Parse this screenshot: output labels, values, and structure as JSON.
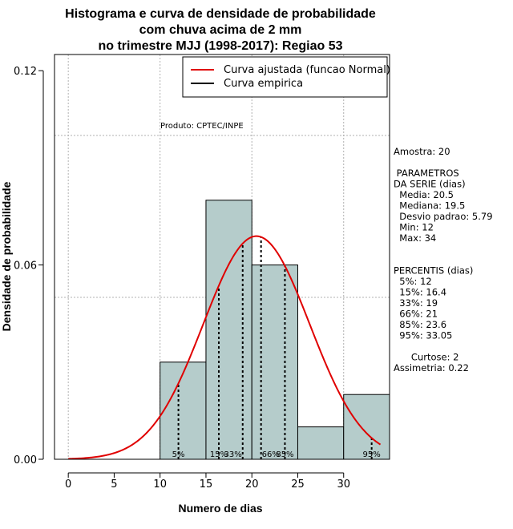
{
  "chart_data": {
    "type": "bar",
    "title_lines": [
      "Histograma e curva de densidade de probabilidade",
      "com chuva acima de 2 mm",
      "no trimestre MJJ (1998-2017): Regiao 53"
    ],
    "xlabel": "Numero de dias",
    "ylabel": "Densidade de probabilidade",
    "xlim": [
      -1.5,
      35
    ],
    "ylim": [
      0,
      0.125
    ],
    "x_ticks": [
      0,
      5,
      10,
      15,
      20,
      25,
      30
    ],
    "x_tick_labels": [
      "0",
      "5",
      "10",
      "15",
      "20",
      "25",
      "30"
    ],
    "y_ticks": [
      0.0,
      0.06,
      0.12
    ],
    "y_tick_labels": [
      "0.00",
      "0.06",
      "0.12"
    ],
    "bins": [
      {
        "start": 10,
        "end": 15,
        "density": 0.03
      },
      {
        "start": 15,
        "end": 20,
        "density": 0.08
      },
      {
        "start": 20,
        "end": 25,
        "density": 0.06
      },
      {
        "start": 25,
        "end": 30,
        "density": 0.01
      },
      {
        "start": 30,
        "end": 35,
        "density": 0.02
      }
    ],
    "bar_color": "#b5cccb",
    "curve_color": "#e00000",
    "normal_fit": {
      "mean": 20.5,
      "sd": 5.79,
      "x_from": 0,
      "x_to": 34
    },
    "grid_x": [
      0,
      10,
      20,
      30
    ],
    "grid_y": [
      0.05,
      0.1
    ],
    "percentiles": [
      {
        "label": "5%",
        "value": 12
      },
      {
        "label": "15%",
        "value": 16.4
      },
      {
        "label": "33%",
        "value": 19
      },
      {
        "label": "66%",
        "value": 21
      },
      {
        "label": "85%",
        "value": 23.6
      },
      {
        "label": "95%",
        "value": 33.05
      }
    ],
    "legend": {
      "position": "top-right",
      "entries": [
        {
          "label": "Curva ajustada (funcao Normal)",
          "color": "#e00000"
        },
        {
          "label": "Curva empirica",
          "color": "#000000"
        }
      ]
    },
    "annotation": "Produto: CPTEC/INPE",
    "side_text": [
      "Amostra: 20",
      "",
      " PARAMETROS",
      "DA SERIE (dias)",
      "  Media: 20.5",
      "  Mediana: 19.5",
      "  Desvio padrao: 5.79",
      "  Min: 12",
      "  Max: 34",
      "",
      "",
      "PERCENTIS (dias)",
      "  5%: 12",
      "  15%: 16.4",
      "  33%: 19",
      "  66%: 21",
      "  85%: 23.6",
      "  95%: 33.05",
      "",
      "      Curtose: 2",
      "Assimetria: 0.22"
    ]
  }
}
